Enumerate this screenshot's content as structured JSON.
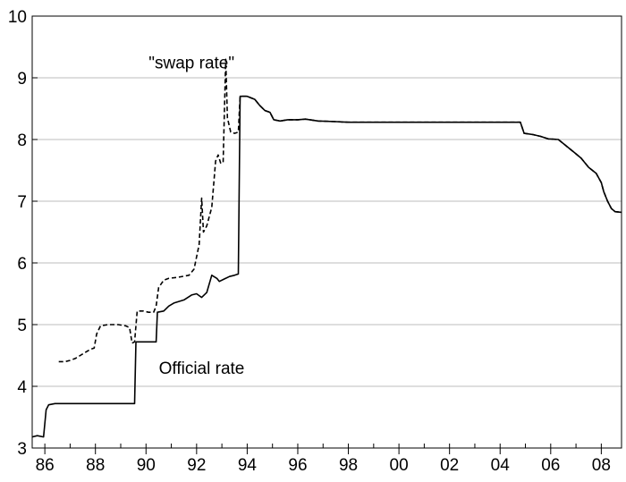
{
  "chart_data": {
    "type": "line",
    "title": "",
    "xlabel": "",
    "ylabel": "",
    "xlim": [
      1985.5,
      2008.8
    ],
    "ylim": [
      3,
      10
    ],
    "grid": true,
    "x_ticks": [
      1986,
      1988,
      1990,
      1992,
      1994,
      1996,
      1998,
      2000,
      2002,
      2004,
      2006,
      2008
    ],
    "x_tick_labels": [
      "86",
      "88",
      "90",
      "92",
      "94",
      "96",
      "98",
      "00",
      "02",
      "04",
      "06",
      "08"
    ],
    "y_ticks": [
      3,
      4,
      5,
      6,
      7,
      8,
      9,
      10
    ],
    "y_tick_labels": [
      "3",
      "4",
      "5",
      "6",
      "7",
      "8",
      "9",
      "10"
    ],
    "series": [
      {
        "name": "Official rate",
        "style": "solid",
        "color": "#000000",
        "points": [
          [
            1985.5,
            3.18
          ],
          [
            1985.7,
            3.2
          ],
          [
            1985.95,
            3.18
          ],
          [
            1986.05,
            3.62
          ],
          [
            1986.15,
            3.7
          ],
          [
            1986.4,
            3.72
          ],
          [
            1989.55,
            3.72
          ],
          [
            1989.6,
            4.72
          ],
          [
            1990.4,
            4.72
          ],
          [
            1990.45,
            5.2
          ],
          [
            1990.7,
            5.22
          ],
          [
            1990.9,
            5.3
          ],
          [
            1991.1,
            5.35
          ],
          [
            1991.5,
            5.4
          ],
          [
            1991.8,
            5.48
          ],
          [
            1992.0,
            5.5
          ],
          [
            1992.2,
            5.44
          ],
          [
            1992.4,
            5.52
          ],
          [
            1992.6,
            5.8
          ],
          [
            1992.8,
            5.75
          ],
          [
            1992.9,
            5.7
          ],
          [
            1993.1,
            5.74
          ],
          [
            1993.3,
            5.78
          ],
          [
            1993.5,
            5.8
          ],
          [
            1993.65,
            5.82
          ],
          [
            1993.72,
            8.7
          ],
          [
            1994.0,
            8.7
          ],
          [
            1994.3,
            8.65
          ],
          [
            1994.5,
            8.55
          ],
          [
            1994.7,
            8.47
          ],
          [
            1994.9,
            8.44
          ],
          [
            1995.05,
            8.32
          ],
          [
            1995.3,
            8.3
          ],
          [
            1995.6,
            8.32
          ],
          [
            1996.0,
            8.32
          ],
          [
            1996.3,
            8.33
          ],
          [
            1996.8,
            8.3
          ],
          [
            1997.5,
            8.29
          ],
          [
            1998.0,
            8.28
          ],
          [
            2004.8,
            8.28
          ],
          [
            2004.95,
            8.1
          ],
          [
            2005.3,
            8.08
          ],
          [
            2005.6,
            8.05
          ],
          [
            2005.9,
            8.01
          ],
          [
            2006.3,
            8.0
          ],
          [
            2006.6,
            7.9
          ],
          [
            2006.9,
            7.8
          ],
          [
            2007.2,
            7.7
          ],
          [
            2007.5,
            7.55
          ],
          [
            2007.8,
            7.45
          ],
          [
            2008.0,
            7.3
          ],
          [
            2008.1,
            7.15
          ],
          [
            2008.25,
            7.0
          ],
          [
            2008.4,
            6.88
          ],
          [
            2008.55,
            6.83
          ],
          [
            2008.8,
            6.82
          ]
        ]
      },
      {
        "name": "\"swap rate\"",
        "style": "dashed",
        "color": "#000000",
        "points": [
          [
            1986.55,
            4.4
          ],
          [
            1986.8,
            4.4
          ],
          [
            1987.0,
            4.42
          ],
          [
            1987.2,
            4.45
          ],
          [
            1987.4,
            4.5
          ],
          [
            1987.6,
            4.55
          ],
          [
            1987.8,
            4.6
          ],
          [
            1987.95,
            4.62
          ],
          [
            1988.05,
            4.85
          ],
          [
            1988.2,
            4.98
          ],
          [
            1988.5,
            5.0
          ],
          [
            1988.9,
            5.0
          ],
          [
            1989.2,
            4.98
          ],
          [
            1989.35,
            4.95
          ],
          [
            1989.45,
            4.7
          ],
          [
            1989.55,
            4.72
          ],
          [
            1989.65,
            5.22
          ],
          [
            1989.9,
            5.22
          ],
          [
            1990.1,
            5.2
          ],
          [
            1990.3,
            5.2
          ],
          [
            1990.4,
            5.3
          ],
          [
            1990.5,
            5.6
          ],
          [
            1990.7,
            5.72
          ],
          [
            1990.9,
            5.75
          ],
          [
            1991.3,
            5.77
          ],
          [
            1991.7,
            5.8
          ],
          [
            1991.9,
            5.9
          ],
          [
            1992.1,
            6.3
          ],
          [
            1992.2,
            7.05
          ],
          [
            1992.27,
            6.5
          ],
          [
            1992.4,
            6.6
          ],
          [
            1992.6,
            6.9
          ],
          [
            1992.75,
            7.65
          ],
          [
            1992.85,
            7.75
          ],
          [
            1992.95,
            7.62
          ],
          [
            1993.05,
            7.62
          ],
          [
            1993.15,
            9.3
          ],
          [
            1993.22,
            8.35
          ],
          [
            1993.35,
            8.12
          ],
          [
            1993.5,
            8.1
          ],
          [
            1993.65,
            8.12
          ],
          [
            1993.72,
            8.7
          ],
          [
            1994.0,
            8.7
          ],
          [
            1994.3,
            8.65
          ],
          [
            1994.5,
            8.55
          ],
          [
            1994.7,
            8.47
          ],
          [
            1994.9,
            8.44
          ],
          [
            1995.05,
            8.32
          ],
          [
            1995.3,
            8.3
          ],
          [
            1995.6,
            8.32
          ],
          [
            1996.0,
            8.32
          ],
          [
            1996.3,
            8.33
          ],
          [
            1996.8,
            8.3
          ],
          [
            1997.5,
            8.29
          ],
          [
            1998.0,
            8.28
          ],
          [
            2004.8,
            8.28
          ],
          [
            2004.95,
            8.1
          ],
          [
            2005.3,
            8.08
          ],
          [
            2005.6,
            8.05
          ],
          [
            2005.9,
            8.01
          ],
          [
            2006.3,
            8.0
          ],
          [
            2006.6,
            7.9
          ],
          [
            2006.9,
            7.8
          ],
          [
            2007.2,
            7.7
          ],
          [
            2007.5,
            7.55
          ],
          [
            2007.8,
            7.45
          ],
          [
            2008.0,
            7.3
          ],
          [
            2008.1,
            7.15
          ],
          [
            2008.25,
            7.0
          ],
          [
            2008.4,
            6.88
          ],
          [
            2008.55,
            6.83
          ],
          [
            2008.8,
            6.82
          ]
        ]
      }
    ],
    "annotations": [
      {
        "text": "\"swap rate\"",
        "x": 1991.8,
        "y": 9.15,
        "series": "\"swap rate\""
      },
      {
        "text": "Official rate",
        "x": 1992.2,
        "y": 4.2,
        "series": "Official rate"
      }
    ]
  }
}
